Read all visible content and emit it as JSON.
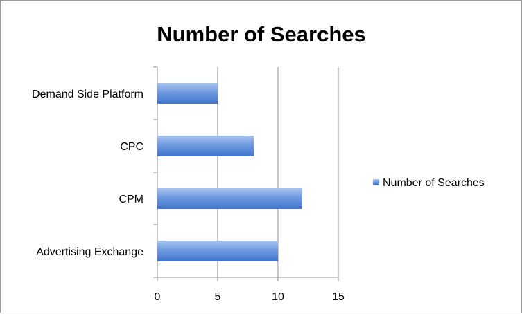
{
  "chart_data": {
    "type": "bar",
    "orientation": "horizontal",
    "title": "Number of Searches",
    "categories": [
      "Demand Side Platform",
      "CPC",
      "CPM",
      "Advertising Exchange"
    ],
    "series": [
      {
        "name": "Number of Searches",
        "values": [
          5,
          8,
          12,
          10
        ],
        "color": "#4f81bd"
      }
    ],
    "xlim": [
      0,
      15
    ],
    "xticks": [
      "0",
      "5",
      "10",
      "15"
    ],
    "grid": true,
    "legend": "right",
    "xlabel": "",
    "ylabel": ""
  }
}
